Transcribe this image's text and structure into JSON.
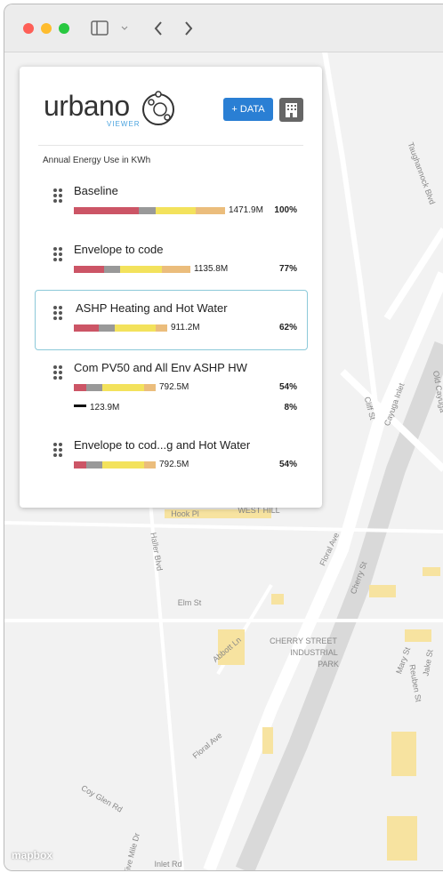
{
  "header": {
    "logo": "urbano",
    "logo_sub": "VIEWER",
    "button": "+ DATA"
  },
  "panel": {
    "subtitle": "Annual Energy Use in KWh",
    "rows": [
      {
        "name": "Baseline",
        "lines": [
          {
            "value": "1471.9M",
            "percent": "100%"
          }
        ]
      },
      {
        "name": "Envelope to code",
        "lines": [
          {
            "value": "1135.8M",
            "percent": "77%"
          }
        ]
      },
      {
        "name": "ASHP Heating and Hot Water",
        "lines": [
          {
            "value": "911.2M",
            "percent": "62%"
          }
        ]
      },
      {
        "name": "Com PV50 and All Env ASHP HW",
        "lines": [
          {
            "value": "792.5M",
            "percent": "54%"
          },
          {
            "value": "123.9M",
            "percent": "8%"
          }
        ]
      },
      {
        "name": "Envelope to cod...g and Hot Water",
        "lines": [
          {
            "value": "792.5M",
            "percent": "54%"
          }
        ]
      }
    ]
  },
  "map": {
    "labels": [
      "Taughannock Blvd",
      "Cliff St",
      "Cayuga Inlet",
      "Hook Pl",
      "WEST HILL",
      "Floral Ave",
      "Cherry St",
      "Haller Blvd",
      "Elm St",
      "Abbott Ln",
      "CHERRY STREET",
      "INDUSTRIAL",
      "PARK",
      "Mary St",
      "Jake St",
      "Reuben St",
      "Floral Ave",
      "Coy Glen Rd",
      "Five Mile Dr",
      "Inlet Rd",
      "Old Cayuga"
    ],
    "attribution": "mapbox"
  }
}
